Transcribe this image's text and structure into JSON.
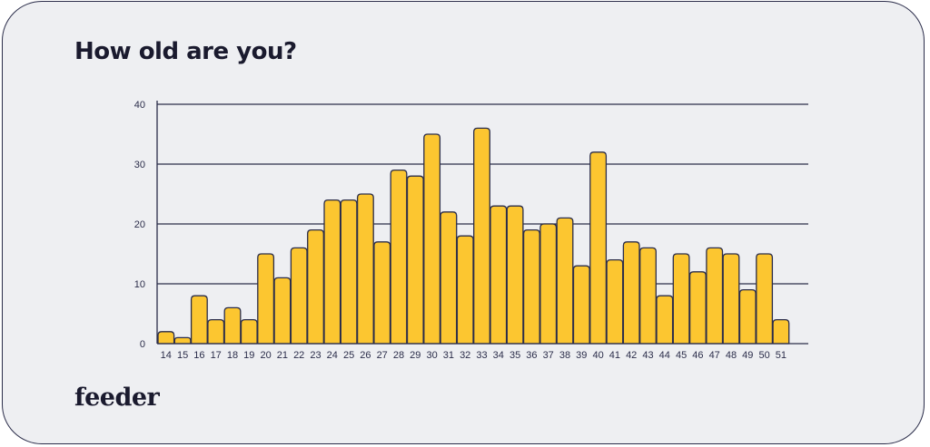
{
  "title": "How old are you?",
  "brand": "feeder",
  "colors": {
    "background": "#eeeff2",
    "bar_fill": "#fcc630",
    "bar_stroke": "#2b2d4a",
    "grid": "#2b2d4a",
    "text": "#1a1a2e"
  },
  "chart_data": {
    "type": "bar",
    "title": "How old are you?",
    "xlabel": "",
    "ylabel": "",
    "categories": [
      "14",
      "15",
      "16",
      "17",
      "18",
      "19",
      "20",
      "21",
      "22",
      "23",
      "24",
      "25",
      "26",
      "27",
      "28",
      "29",
      "30",
      "31",
      "32",
      "33",
      "34",
      "35",
      "36",
      "37",
      "38",
      "39",
      "40",
      "41",
      "42",
      "43",
      "44",
      "45",
      "46",
      "47",
      "48",
      "49",
      "50",
      "51"
    ],
    "values": [
      2,
      1,
      8,
      4,
      6,
      4,
      15,
      11,
      16,
      19,
      24,
      24,
      25,
      17,
      29,
      28,
      35,
      22,
      18,
      36,
      23,
      23,
      19,
      20,
      21,
      13,
      32,
      14,
      17,
      16,
      8,
      15,
      12,
      16,
      15,
      9,
      15,
      4
    ],
    "ylim": [
      0,
      40
    ],
    "yticks": [
      0,
      10,
      20,
      30,
      40
    ],
    "grid": true,
    "legend": "none"
  }
}
